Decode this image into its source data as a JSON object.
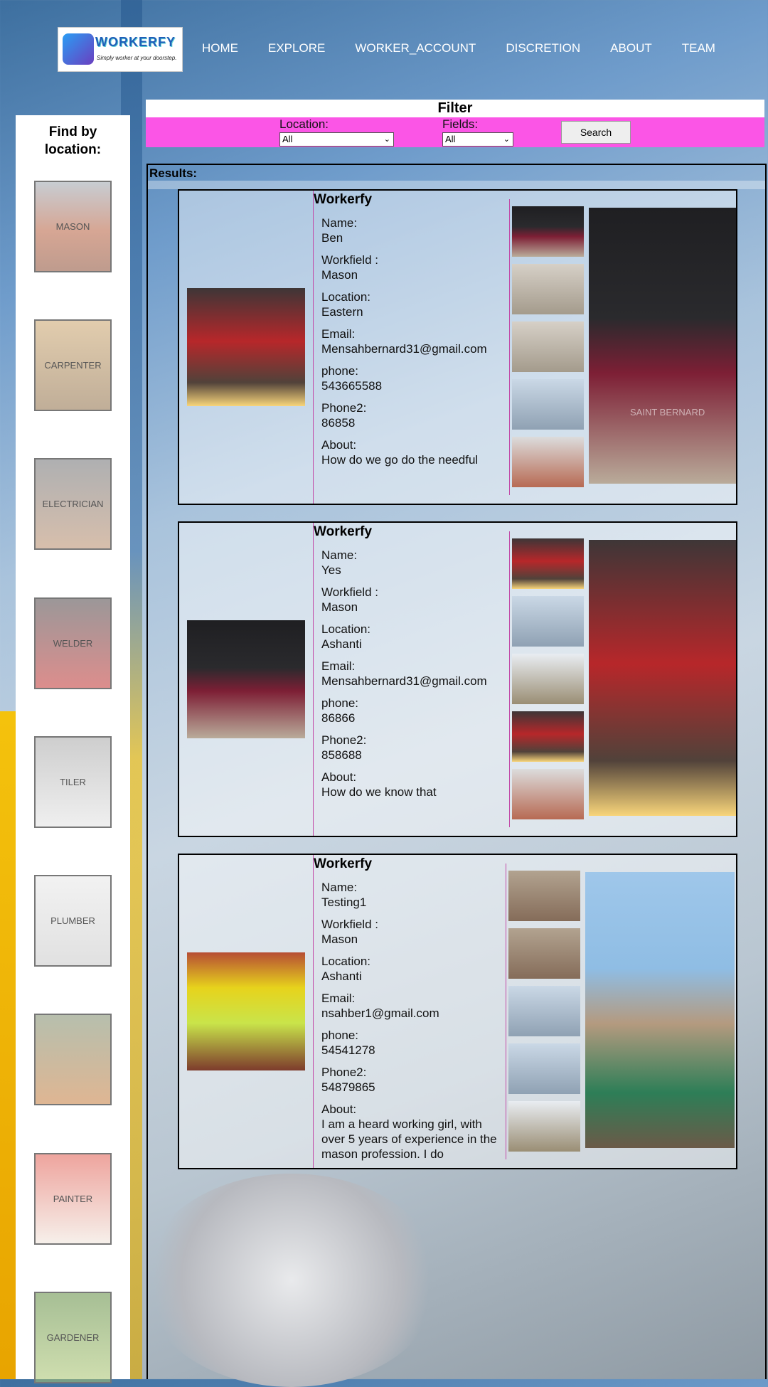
{
  "header": {
    "logo_name": "WORKERFY",
    "logo_tagline": "Simply worker at your doorstep.",
    "nav": [
      "HOME",
      "EXPLORE",
      "WORKER_ACCOUNT",
      "DISCRETION",
      "ABOUT",
      "TEAM"
    ]
  },
  "sidebar": {
    "title_line1": "Find by",
    "title_line2": "location:",
    "categories": [
      "MASON",
      "CARPENTER",
      "ELECTRICIAN",
      "WELDER",
      "TILER",
      "PLUMBER",
      "",
      "PAINTER",
      "GARDENER"
    ]
  },
  "filter": {
    "title": "Filter",
    "location_label": "Location:",
    "location_value": "All",
    "fields_label": "Fields:",
    "fields_value": "All",
    "search_label": "Search"
  },
  "results": {
    "label": "Results:",
    "cards": [
      {
        "brand": "Workerfy",
        "name_label": "Name:",
        "name": "Ben",
        "workfield_label": "Workfield :",
        "workfield": "Mason",
        "location_label": "Location:",
        "location": "Eastern",
        "email_label": "Email:",
        "email": "Mensahbernard31@gmail.com",
        "phone_label": "phone:",
        "phone": "543665588",
        "phone2_label": "Phone2:",
        "phone2": "86858",
        "about_label": "About:",
        "about": "How do we go do the needful",
        "watermark": "SAINT BERNARD"
      },
      {
        "brand": "Workerfy",
        "name_label": "Name:",
        "name": "Yes",
        "workfield_label": "Workfield :",
        "workfield": "Mason",
        "location_label": "Location:",
        "location": "Ashanti",
        "email_label": "Email:",
        "email": "Mensahbernard31@gmail.com",
        "phone_label": "phone:",
        "phone": "86866",
        "phone2_label": "Phone2:",
        "phone2": "858688",
        "about_label": "About:",
        "about": "How do we know that"
      },
      {
        "brand": "Workerfy",
        "name_label": "Name:",
        "name": "Testing1",
        "workfield_label": "Workfield :",
        "workfield": "Mason",
        "location_label": "Location:",
        "location": "Ashanti",
        "email_label": "Email:",
        "email": "nsahber1@gmail.com",
        "phone_label": "phone:",
        "phone": "54541278",
        "phone2_label": "Phone2:",
        "phone2": "54879865",
        "about_label": "About:",
        "about": "I am a heard working girl, with over 5 years of experience in the mason profession. I do"
      }
    ]
  }
}
